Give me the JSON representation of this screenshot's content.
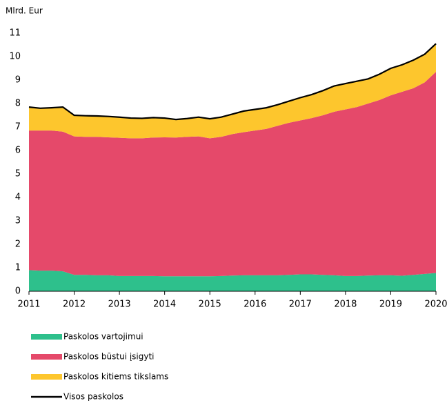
{
  "chart_data": {
    "type": "area",
    "y_label": "Mlrd. Eur",
    "x": [
      2011,
      2011.25,
      2011.5,
      2011.75,
      2012,
      2012.25,
      2012.5,
      2012.75,
      2013,
      2013.25,
      2013.5,
      2013.75,
      2014,
      2014.25,
      2014.5,
      2014.75,
      2015,
      2015.25,
      2015.5,
      2015.75,
      2016,
      2016.25,
      2016.5,
      2016.75,
      2017,
      2017.25,
      2017.5,
      2017.75,
      2018,
      2018.25,
      2018.5,
      2018.75,
      2019,
      2019.25,
      2019.5,
      2019.75,
      2020
    ],
    "series": [
      {
        "name": "Paskolos vartojimui",
        "color": "#2ec08c",
        "values": [
          0.9,
          0.88,
          0.88,
          0.85,
          0.7,
          0.7,
          0.68,
          0.68,
          0.65,
          0.65,
          0.65,
          0.65,
          0.64,
          0.64,
          0.64,
          0.64,
          0.64,
          0.65,
          0.67,
          0.68,
          0.68,
          0.68,
          0.68,
          0.7,
          0.72,
          0.72,
          0.7,
          0.68,
          0.65,
          0.65,
          0.67,
          0.68,
          0.68,
          0.66,
          0.7,
          0.74,
          0.78
        ]
      },
      {
        "name": "Paskolos būstui įsigyti",
        "color": "#e5496a",
        "values": [
          5.95,
          5.97,
          5.97,
          5.95,
          5.9,
          5.88,
          5.9,
          5.88,
          5.89,
          5.87,
          5.87,
          5.9,
          5.92,
          5.91,
          5.94,
          5.96,
          5.88,
          5.93,
          6.03,
          6.1,
          6.17,
          6.24,
          6.37,
          6.48,
          6.56,
          6.66,
          6.8,
          6.97,
          7.1,
          7.2,
          7.33,
          7.47,
          7.67,
          7.84,
          7.95,
          8.16,
          8.57
        ]
      },
      {
        "name": "Paskolos kitiems tikslams",
        "color": "#fdc62d",
        "values": [
          1.0,
          0.95,
          0.97,
          1.05,
          0.9,
          0.9,
          0.89,
          0.89,
          0.88,
          0.86,
          0.85,
          0.85,
          0.82,
          0.77,
          0.78,
          0.82,
          0.83,
          0.84,
          0.85,
          0.9,
          0.9,
          0.9,
          0.9,
          0.92,
          0.97,
          1.0,
          1.05,
          1.1,
          1.1,
          1.1,
          1.05,
          1.1,
          1.15,
          1.15,
          1.2,
          1.2,
          1.2
        ]
      },
      {
        "name": "Visos paskolos",
        "color": "#000000",
        "type": "line",
        "values": [
          7.85,
          7.8,
          7.82,
          7.85,
          7.5,
          7.48,
          7.47,
          7.45,
          7.42,
          7.38,
          7.37,
          7.4,
          7.38,
          7.32,
          7.36,
          7.42,
          7.35,
          7.42,
          7.55,
          7.68,
          7.75,
          7.82,
          7.95,
          8.1,
          8.25,
          8.38,
          8.55,
          8.75,
          8.85,
          8.95,
          9.05,
          9.25,
          9.5,
          9.65,
          9.85,
          10.1,
          10.55
        ]
      }
    ],
    "xlim": [
      2011,
      2020
    ],
    "xticks": [
      2011,
      2012,
      2013,
      2014,
      2015,
      2016,
      2017,
      2018,
      2019,
      2020
    ],
    "ylim": [
      0,
      11
    ],
    "yticks": [
      0,
      1,
      2,
      3,
      4,
      5,
      6,
      7,
      8,
      9,
      10,
      11
    ],
    "grid": false
  }
}
